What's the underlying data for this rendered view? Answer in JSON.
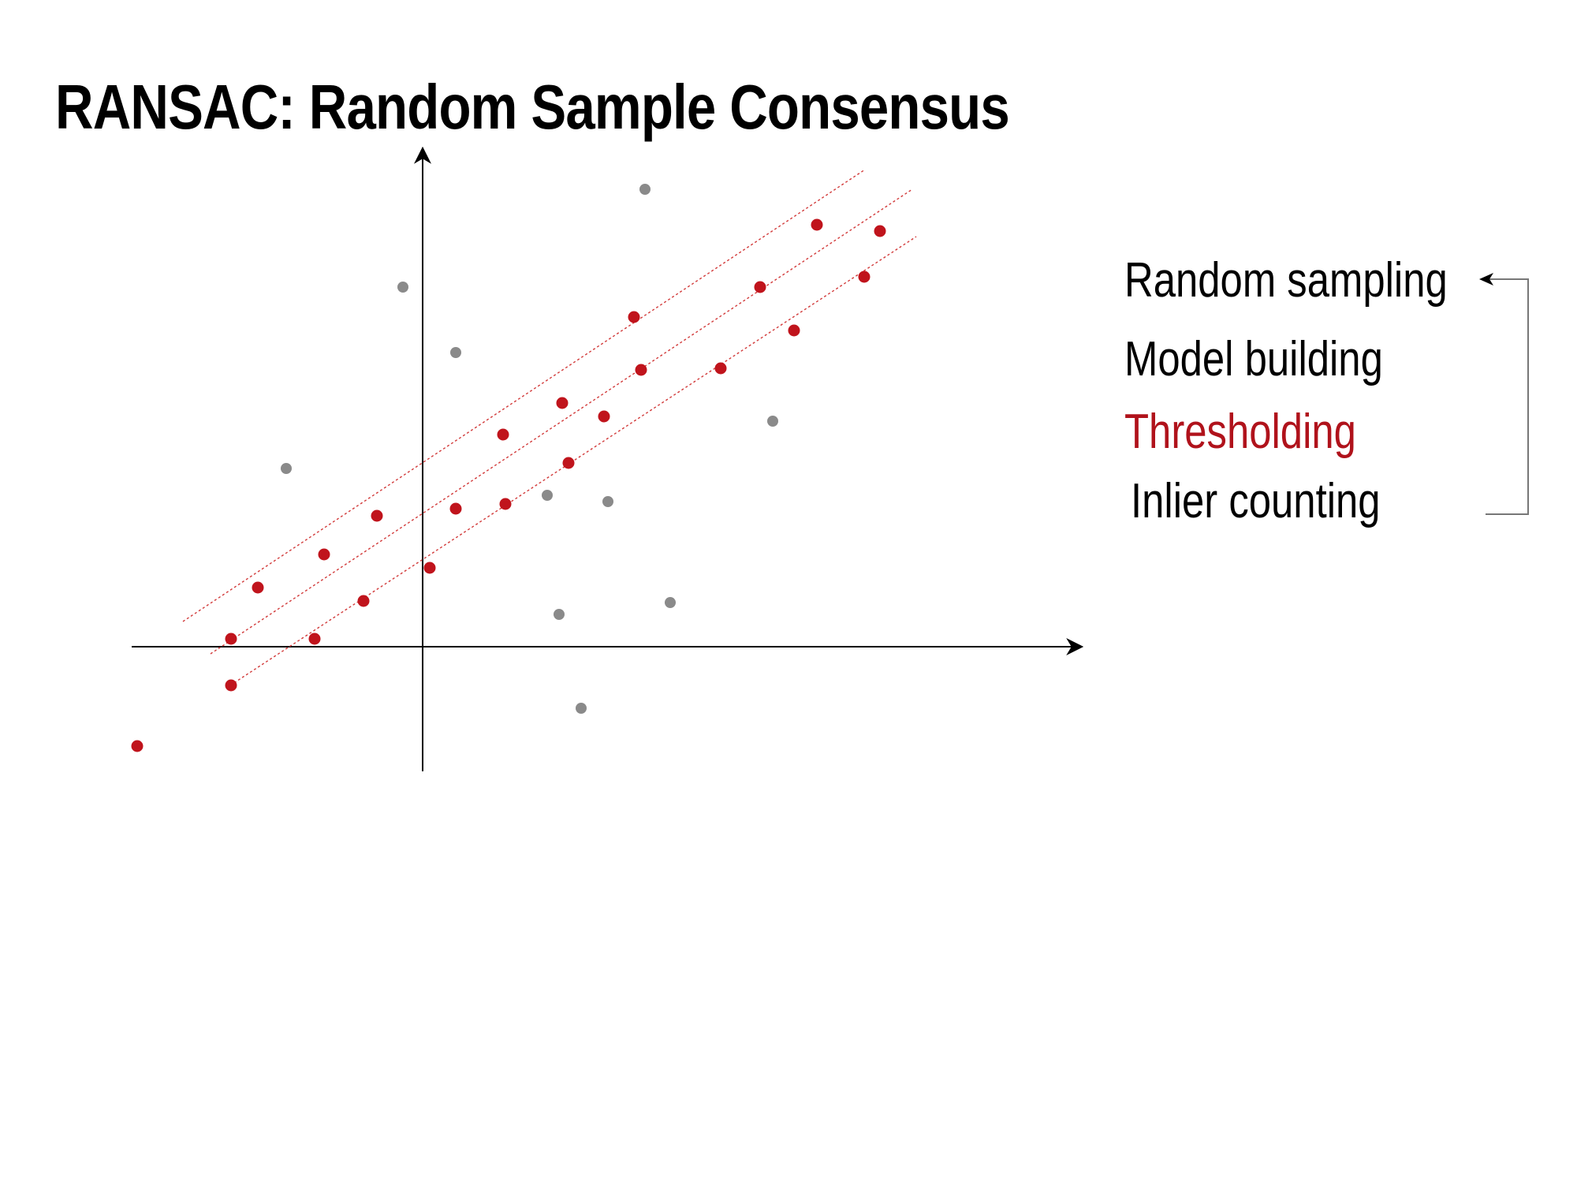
{
  "title": "RANSAC: Random Sample Consensus",
  "steps": [
    {
      "label": "Random sampling",
      "color": "#000000"
    },
    {
      "label": "Model building",
      "color": "#000000"
    },
    {
      "label": "Thresholding",
      "color": "#b0121b"
    },
    {
      "label": "Inlier counting",
      "color": "#000000"
    }
  ],
  "colors": {
    "inlier": "#c0141c",
    "outlier": "#8a8a8a",
    "axis": "#000000",
    "model_line": "#d23a3a"
  },
  "icons": {
    "loop_arrow": "arrow-left-icon"
  }
}
